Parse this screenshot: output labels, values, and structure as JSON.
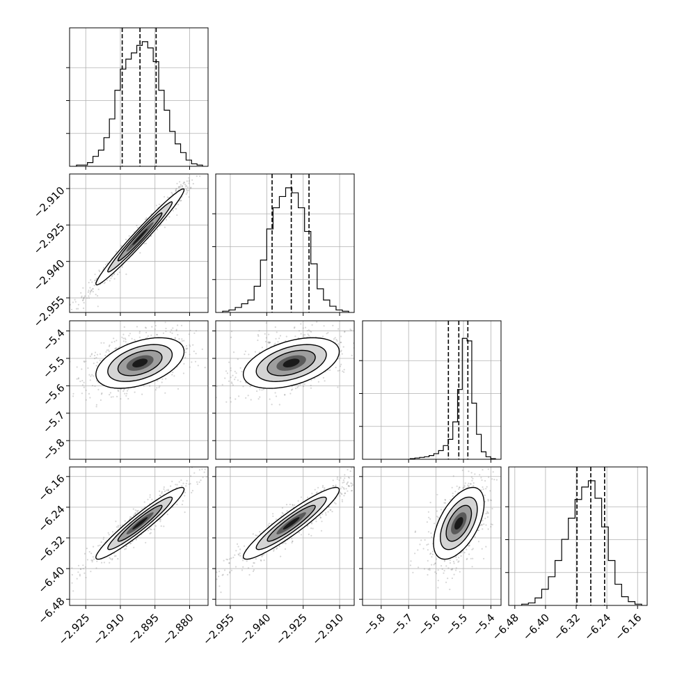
{
  "chart_data": {
    "type": "corner",
    "grid": true,
    "parameters": [
      {
        "ticks": [
          -2.925,
          -2.91,
          -2.895,
          -2.88
        ],
        "tick_labels": [
          "−2.925",
          "−2.910",
          "−2.895",
          "−2.880"
        ],
        "range": [
          -2.932,
          -2.872
        ],
        "quantiles": [
          -2.9092,
          -2.9015,
          -2.8945
        ]
      },
      {
        "ticks": [
          -2.955,
          -2.94,
          -2.925,
          -2.91
        ],
        "tick_labels": [
          "−2.955",
          "−2.940",
          "−2.925",
          "−2.910"
        ],
        "range": [
          -2.961,
          -2.904
        ],
        "quantiles": [
          -2.9378,
          -2.9299,
          -2.9226
        ]
      },
      {
        "ticks": [
          -5.8,
          -5.7,
          -5.6,
          -5.5,
          -5.4
        ],
        "tick_labels": [
          "−5.8",
          "−5.7",
          "−5.6",
          "−5.5",
          "−5.4"
        ],
        "range": [
          -5.868,
          -5.363
        ],
        "quantiles": [
          -5.555,
          -5.517,
          -5.484
        ]
      },
      {
        "ticks": [
          -6.48,
          -6.4,
          -6.32,
          -6.24,
          -6.16
        ],
        "tick_labels": [
          "−6.48",
          "−6.40",
          "−6.32",
          "−6.24",
          "−6.16"
        ],
        "range": [
          -6.496,
          -6.135
        ],
        "quantiles": [
          -6.318,
          -6.282,
          -6.246
        ]
      }
    ],
    "histograms": [
      [
        0.01,
        0.01,
        0.03,
        0.08,
        0.13,
        0.23,
        0.38,
        0.61,
        0.78,
        0.86,
        0.91,
        0.97,
        1.0,
        0.95,
        0.84,
        0.61,
        0.45,
        0.28,
        0.18,
        0.11,
        0.05,
        0.02,
        0.01
      ],
      [
        0.01,
        0.02,
        0.04,
        0.07,
        0.1,
        0.21,
        0.42,
        0.67,
        0.84,
        0.93,
        1.0,
        0.96,
        0.84,
        0.65,
        0.39,
        0.19,
        0.1,
        0.05,
        0.02,
        0.01
      ],
      [
        0.005,
        0.01,
        0.015,
        0.02,
        0.03,
        0.045,
        0.07,
        0.11,
        0.16,
        0.3,
        0.56,
        0.97,
        0.95,
        0.45,
        0.2,
        0.06,
        0.02,
        0.005
      ],
      [
        0.01,
        0.02,
        0.06,
        0.13,
        0.23,
        0.36,
        0.53,
        0.7,
        0.85,
        0.95,
        1.0,
        0.86,
        0.63,
        0.36,
        0.17,
        0.07,
        0.03,
        0.01
      ]
    ],
    "correlations": [
      [
        1,
        0.98,
        0.45,
        0.95
      ],
      [
        0.98,
        1,
        0.45,
        0.93
      ],
      [
        0.45,
        0.45,
        1,
        0.55
      ],
      [
        0.95,
        0.93,
        0.55,
        1
      ]
    ]
  }
}
